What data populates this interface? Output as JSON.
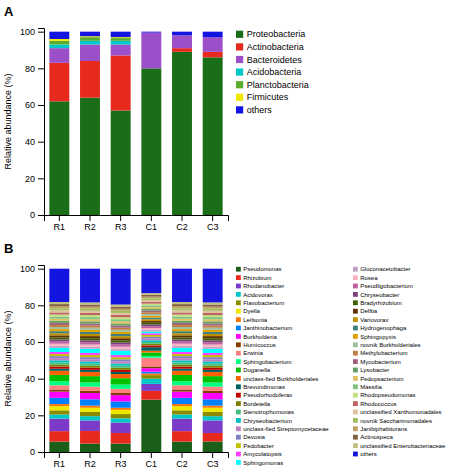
{
  "chart_data": [
    {
      "type": "bar",
      "title": "A",
      "stacked": true,
      "legend": "right",
      "categories": [
        "R1",
        "R2",
        "R3",
        "C1",
        "C2",
        "C3"
      ],
      "ylabel": "Relative abundance (%)",
      "ylim": [
        0,
        102
      ],
      "yticks": [
        0,
        20,
        40,
        60,
        80,
        100
      ],
      "series": [
        {
          "name": "Proteobacteria",
          "color": "#1a6e1a",
          "values": [
            62,
            64,
            57,
            80,
            89,
            86
          ]
        },
        {
          "name": "Actinobacteria",
          "color": "#e8291e",
          "values": [
            21,
            20,
            30,
            0,
            2,
            3
          ]
        },
        {
          "name": "Bacteroidetes",
          "color": "#9b4fc8",
          "values": [
            8,
            9,
            6,
            19.5,
            7,
            8
          ]
        },
        {
          "name": "Acidobacteria",
          "color": "#00c8c8",
          "values": [
            2,
            2,
            2,
            0,
            0,
            0
          ]
        },
        {
          "name": "Planctobacteria",
          "color": "#5aad2e",
          "values": [
            2,
            2,
            1.5,
            0,
            0,
            0
          ]
        },
        {
          "name": "Firmicutes",
          "color": "#f0e800",
          "values": [
            1,
            0.5,
            0.5,
            0,
            0,
            0
          ]
        },
        {
          "name": "others",
          "color": "#1414e0",
          "values": [
            4,
            2.5,
            3,
            0.5,
            2,
            3
          ]
        }
      ]
    },
    {
      "type": "bar",
      "title": "B",
      "stacked": true,
      "legend": "right",
      "categories": [
        "R1",
        "R2",
        "R3",
        "C1",
        "C2",
        "C3"
      ],
      "ylabel": "Relative abundance (%)",
      "ylim": [
        0,
        102
      ],
      "yticks": [
        0,
        20,
        40,
        60,
        80,
        100
      ],
      "series": [
        {
          "name": "Pseudomonas",
          "color": "#1a5e1a",
          "values": [
            5.682,
            4.598,
            4.598,
            28.571,
            5.682,
            5.747
          ]
        },
        {
          "name": "Rhizobium",
          "color": "#e8291e",
          "values": [
            5.682,
            6.897,
            5.747,
            4.762,
            5.682,
            4.598
          ]
        },
        {
          "name": "Rhodanobacter",
          "color": "#7b3bc8",
          "values": [
            6.818,
            5.747,
            5.747,
            3.81,
            6.818,
            6.897
          ]
        },
        {
          "name": "Acidovorax",
          "color": "#00c8c8",
          "values": [
            2.273,
            2.299,
            2.299,
            2.857,
            2.273,
            2.299
          ]
        },
        {
          "name": "Flavobacterium",
          "color": "#8b8b00",
          "values": [
            2.273,
            2.299,
            2.299,
            1.905,
            2.273,
            2.299
          ]
        },
        {
          "name": "Dyella",
          "color": "#f0e800",
          "values": [
            2.273,
            2.299,
            2.299,
            0,
            2.273,
            2.299
          ]
        },
        {
          "name": "Leifsonia",
          "color": "#ff7700",
          "values": [
            1.136,
            1.149,
            1.149,
            0.952,
            1.136,
            1.149
          ]
        },
        {
          "name": "Janthinobacterium",
          "color": "#0080ff",
          "values": [
            3.409,
            3.448,
            3.448,
            0.952,
            3.409,
            3.448
          ]
        },
        {
          "name": "Burkholderia",
          "color": "#ff00ff",
          "values": [
            3.409,
            3.448,
            3.448,
            1.905,
            3.409,
            3.448
          ]
        },
        {
          "name": "Humicoccus",
          "color": "#804000",
          "values": [
            1.136,
            1.149,
            1.149,
            0.952,
            1.136,
            1.149
          ]
        },
        {
          "name": "Erwinia",
          "color": "#ff8080",
          "values": [
            2.273,
            2.299,
            2.299,
            4.762,
            2.273,
            2.299
          ]
        },
        {
          "name": "Sphingobacterium",
          "color": "#00ff80",
          "values": [
            2.273,
            2.299,
            2.299,
            0.952,
            2.273,
            2.299
          ]
        },
        {
          "name": "Duganella",
          "color": "#00c000",
          "values": [
            3.409,
            3.448,
            3.448,
            1.905,
            3.409,
            3.448
          ]
        },
        {
          "name": "unclass-fied Burkholderiales",
          "color": "#ff6000",
          "values": [
            2.273,
            2.299,
            2.299,
            0.952,
            2.273,
            2.299
          ]
        },
        {
          "name": "Brevundimonas",
          "color": "#006060",
          "values": [
            1.136,
            1.149,
            1.149,
            1.905,
            1.136,
            1.149
          ]
        },
        {
          "name": "Pseudorhodoferax",
          "color": "#c00000",
          "values": [
            1.136,
            1.149,
            1.149,
            0.952,
            1.136,
            1.149
          ]
        },
        {
          "name": "Bordetella",
          "color": "#808000",
          "values": [
            1.136,
            1.149,
            1.149,
            0.952,
            1.136,
            1.149
          ]
        },
        {
          "name": "Stenotrophomonas",
          "color": "#40c080",
          "values": [
            1.136,
            1.149,
            1.149,
            0.952,
            1.136,
            1.149
          ]
        },
        {
          "name": "Chryseobacterium",
          "color": "#00c0c0",
          "values": [
            1.136,
            1.149,
            1.149,
            0.952,
            1.136,
            1.149
          ]
        },
        {
          "name": "unclass-fied Streptomycetaceae",
          "color": "#c080c0",
          "values": [
            1.136,
            1.149,
            1.149,
            0.952,
            1.136,
            1.149
          ]
        },
        {
          "name": "Devosia",
          "color": "#8080c0",
          "values": [
            1.136,
            1.149,
            1.149,
            0.952,
            1.136,
            1.149
          ]
        },
        {
          "name": "Pedobacter",
          "color": "#c0c000",
          "values": [
            1.136,
            1.149,
            1.149,
            0.952,
            1.136,
            1.149
          ]
        },
        {
          "name": "Amycolatopsis",
          "color": "#ff40ff",
          "values": [
            1.136,
            1.149,
            1.149,
            0.952,
            1.136,
            1.149
          ]
        },
        {
          "name": "Sphingomonas",
          "color": "#00ffff",
          "values": [
            2.273,
            2.299,
            2.299,
            0.952,
            2.273,
            2.299
          ]
        },
        {
          "name": "Gluconacetobacter",
          "color": "#c0a0c0",
          "values": [
            1.136,
            1.149,
            1.149,
            0.952,
            1.136,
            1.149
          ]
        },
        {
          "name": "Rosea",
          "color": "#ffb0c0",
          "values": [
            1.136,
            1.149,
            1.149,
            0.952,
            1.136,
            1.149
          ]
        },
        {
          "name": "Pseudligobacterium",
          "color": "#c060a0",
          "values": [
            1.136,
            1.149,
            1.149,
            0.952,
            1.136,
            1.149
          ]
        },
        {
          "name": "Chryseobacter",
          "color": "#804080",
          "values": [
            1.136,
            1.149,
            1.149,
            0.952,
            1.136,
            1.149
          ]
        },
        {
          "name": "Bradyrhizobium",
          "color": "#406000",
          "values": [
            1.136,
            1.149,
            1.149,
            0.952,
            1.136,
            1.149
          ]
        },
        {
          "name": "Delftia",
          "color": "#603000",
          "values": [
            1.136,
            1.149,
            1.149,
            0.952,
            1.136,
            1.149
          ]
        },
        {
          "name": "Variovorax",
          "color": "#c09000",
          "values": [
            1.136,
            1.149,
            1.149,
            0.952,
            1.136,
            1.149
          ]
        },
        {
          "name": "Hydrogenophaga",
          "color": "#408080",
          "values": [
            1.136,
            1.149,
            1.149,
            0.952,
            1.136,
            1.149
          ]
        },
        {
          "name": "Sphingopyxis",
          "color": "#e0a000",
          "values": [
            1.136,
            1.149,
            1.149,
            0.952,
            1.136,
            1.149
          ]
        },
        {
          "name": "novnik Burkholderiales",
          "color": "#a0c0a0",
          "values": [
            1.136,
            1.149,
            1.149,
            0.952,
            1.136,
            1.149
          ]
        },
        {
          "name": "Methylobacterium",
          "color": "#c08040",
          "values": [
            1.136,
            1.149,
            1.149,
            0.952,
            1.136,
            1.149
          ]
        },
        {
          "name": "Mycobacterium",
          "color": "#a06080",
          "values": [
            1.136,
            1.149,
            1.149,
            0.952,
            1.136,
            1.149
          ]
        },
        {
          "name": "Lysobacter",
          "color": "#60a060",
          "values": [
            1.136,
            1.149,
            1.149,
            0.952,
            1.136,
            1.149
          ]
        },
        {
          "name": "Pedopsacterium",
          "color": "#e0c060",
          "values": [
            1.136,
            1.149,
            1.149,
            0.952,
            1.136,
            1.149
          ]
        },
        {
          "name": "Massilia",
          "color": "#80c080",
          "values": [
            1.136,
            1.149,
            1.149,
            0.952,
            1.136,
            1.149
          ]
        },
        {
          "name": "Rhodopseudomonas",
          "color": "#c0e080",
          "values": [
            1.136,
            1.149,
            1.149,
            0.952,
            1.136,
            1.149
          ]
        },
        {
          "name": "Rhodococcus",
          "color": "#c06060",
          "values": [
            1.136,
            1.149,
            1.149,
            0.952,
            1.136,
            1.149
          ]
        },
        {
          "name": "unclassified Xanthomonadales",
          "color": "#e0c0a0",
          "values": [
            1.136,
            1.149,
            1.149,
            0.952,
            1.136,
            1.149
          ]
        },
        {
          "name": "novnik Saccharimonadales",
          "color": "#a0c060",
          "values": [
            1.136,
            1.149,
            1.149,
            0.952,
            1.136,
            1.149
          ]
        },
        {
          "name": "Janibiphabitorans",
          "color": "#c0a060",
          "values": [
            1.136,
            1.149,
            1.149,
            0.952,
            1.136,
            1.149
          ]
        },
        {
          "name": "Actinospeca",
          "color": "#806040",
          "values": [
            1.136,
            1.149,
            1.149,
            0.952,
            1.136,
            1.149
          ]
        },
        {
          "name": "unclassified Enterobacteriaceae",
          "color": "#c0c080",
          "values": [
            1.136,
            1.149,
            1.149,
            0.952,
            1.136,
            1.149
          ]
        },
        {
          "name": "others",
          "color": "#1414e0",
          "values": [
            18.182,
            18.391,
            19.54,
            13.333,
            18.182,
            18.391
          ]
        }
      ]
    }
  ]
}
